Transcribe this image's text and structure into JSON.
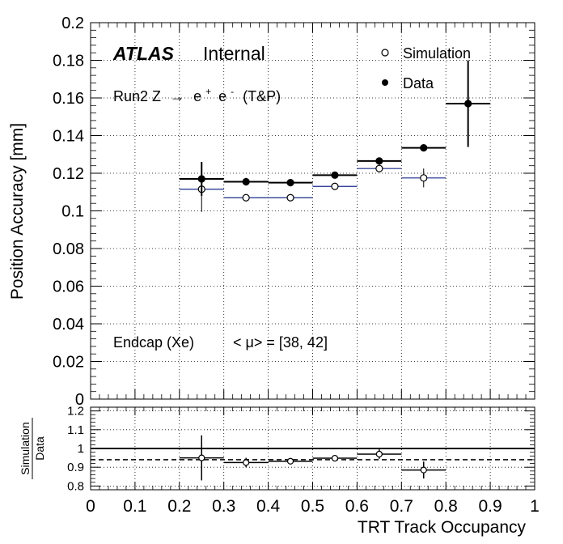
{
  "chart_data": [
    {
      "type": "scatter",
      "panel": "main",
      "xlabel": "",
      "ylabel": "Position Accuracy [mm]",
      "xlim": [
        0,
        1
      ],
      "ylim": [
        0,
        0.2
      ],
      "y_ticks": [
        "0",
        "0.02",
        "0.04",
        "0.06",
        "0.08",
        "0.1",
        "0.12",
        "0.14",
        "0.16",
        "0.18",
        "0.2"
      ],
      "grid": true,
      "legend_placement": "top-right",
      "series": [
        {
          "name": "Simulation",
          "marker": "open-circle",
          "color": "#1a2a8c",
          "x": [
            0.25,
            0.35,
            0.45,
            0.55,
            0.65,
            0.75
          ],
          "y": [
            0.1115,
            0.107,
            0.107,
            0.113,
            0.1225,
            0.1175
          ],
          "yerr": [
            0.012,
            0.001,
            0.001,
            0.001,
            0.002,
            0.005
          ]
        },
        {
          "name": "Data",
          "marker": "filled-circle",
          "color": "#000000",
          "x": [
            0.25,
            0.35,
            0.45,
            0.55,
            0.65,
            0.75,
            0.85
          ],
          "y": [
            0.117,
            0.1155,
            0.115,
            0.119,
            0.1265,
            0.1335,
            0.157
          ],
          "yerr": [
            0.009,
            0.002,
            0.001,
            0.001,
            0.001,
            0.001,
            0.023
          ]
        }
      ],
      "bin_half_width": 0.05,
      "annotations": {
        "atlas": "ATLAS",
        "internal": "Internal",
        "process_prefix": "Run2 Z",
        "arrow": "→",
        "process_e": "e",
        "plus": "+",
        "minus": "-",
        "tp": "(T&P)",
        "region": "Endcap (Xe)",
        "pileup_open": "< μ> = [38, 42]"
      }
    },
    {
      "type": "scatter",
      "panel": "ratio",
      "xlabel": "TRT Track Occupancy",
      "ylabel_numerator": "Simulation",
      "ylabel_denominator": "Data",
      "xlim": [
        0,
        1
      ],
      "ylim": [
        0.78,
        1.22
      ],
      "x_ticks": [
        "0",
        "0.1",
        "0.2",
        "0.3",
        "0.4",
        "0.5",
        "0.6",
        "0.7",
        "0.8",
        "0.9",
        "1"
      ],
      "y_ticks": [
        "0.8",
        "0.9",
        "1",
        "1.1",
        "1.2"
      ],
      "grid": true,
      "reference_line": 1,
      "mean_line": 0.94,
      "series": [
        {
          "x": [
            0.25,
            0.35,
            0.45,
            0.55,
            0.65,
            0.75
          ],
          "y": [
            0.95,
            0.925,
            0.932,
            0.948,
            0.97,
            0.885
          ],
          "yerr": [
            0.12,
            0.025,
            0.012,
            0.012,
            0.025,
            0.045
          ]
        }
      ]
    }
  ]
}
